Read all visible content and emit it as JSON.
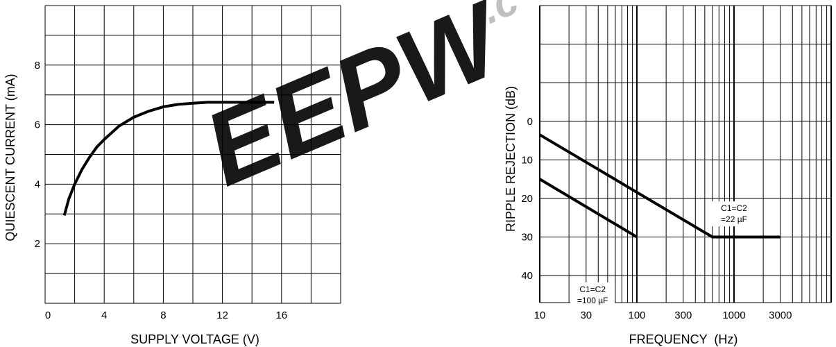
{
  "watermark": {
    "text": "EEPW",
    "suffix": ".c",
    "color": "#e32222"
  },
  "chart_data": [
    {
      "type": "line",
      "xlabel": "SUPPLY VOLTAGE (V)",
      "ylabel": "QUIESCENT CURRENT (mA)",
      "xlim": [
        0,
        20
      ],
      "ylim": [
        0,
        10
      ],
      "x_scale": "linear",
      "y_scale": "linear",
      "grid": true,
      "x_ticks": [
        0,
        4,
        8,
        12,
        16
      ],
      "x_tick_labels": [
        "0",
        "4",
        "8",
        "12",
        "16"
      ],
      "y_ticks": [
        2,
        4,
        6,
        8
      ],
      "y_tick_labels": [
        "2",
        "4",
        "6",
        "8"
      ],
      "series": [
        {
          "x": [
            1.3,
            1.6,
            2.0,
            2.5,
            3.0,
            3.5,
            4.0,
            5.0,
            6.0,
            7.0,
            8.0,
            9.0,
            10.0,
            11.0,
            12.0,
            13.0,
            14.0,
            15.5
          ],
          "y": [
            2.95,
            3.5,
            4.0,
            4.5,
            4.9,
            5.25,
            5.5,
            5.95,
            6.25,
            6.45,
            6.6,
            6.68,
            6.72,
            6.75,
            6.75,
            6.75,
            6.75,
            6.75
          ],
          "color": "#000000"
        }
      ]
    },
    {
      "type": "line",
      "xlabel": "FREQUENCY  (Hz)",
      "ylabel": "RIPPLE REJECTION (dB)",
      "xlim": [
        10,
        10000
      ],
      "ylim": [
        -30,
        47
      ],
      "x_scale": "log",
      "y_inverted": true,
      "grid": true,
      "x_ticks": [
        10,
        30,
        100,
        300,
        1000,
        3000
      ],
      "x_tick_labels": [
        "10",
        "30",
        "100",
        "300",
        "1000",
        "3000"
      ],
      "y_ticks": [
        0,
        10,
        20,
        30,
        40
      ],
      "y_tick_labels": [
        "0",
        "10",
        "20",
        "30",
        "40"
      ],
      "annotations": [
        {
          "lines": [
            "C1=C2",
            "=22 µF"
          ],
          "x": 1000,
          "y": 24
        },
        {
          "lines": [
            "C1=C2",
            "=100 µF"
          ],
          "x": 35,
          "y": 45
        }
      ],
      "series": [
        {
          "x": [
            10,
            600,
            3000
          ],
          "y": [
            3.5,
            30,
            30
          ],
          "color": "#000000"
        },
        {
          "x": [
            10,
            100
          ],
          "y": [
            15,
            30
          ],
          "color": "#000000"
        }
      ]
    }
  ]
}
